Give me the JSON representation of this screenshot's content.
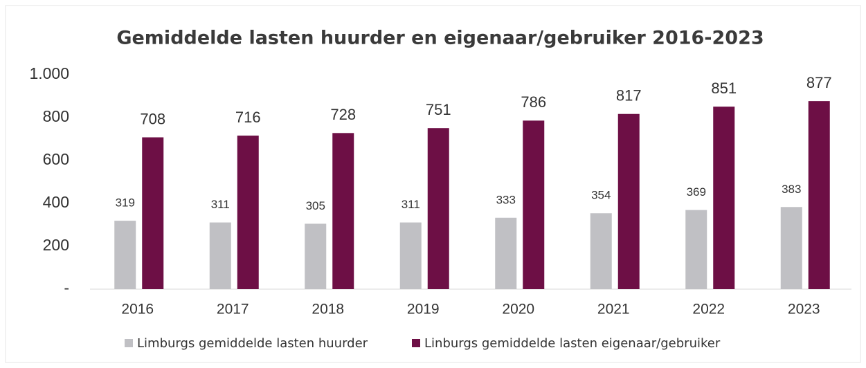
{
  "chart_data": {
    "type": "bar",
    "title": "Gemiddelde lasten huurder en eigenaar/gebruiker 2016-2023",
    "categories": [
      "2016",
      "2017",
      "2018",
      "2019",
      "2020",
      "2021",
      "2022",
      "2023"
    ],
    "series": [
      {
        "name": "Limburgs gemiddelde lasten huurder",
        "color": "#c0c0c4",
        "values": [
          319,
          311,
          305,
          311,
          333,
          354,
          369,
          383
        ]
      },
      {
        "name": "Linburgs gemiddelde lasten eigenaar/gebruiker",
        "color": "#6d0f45",
        "values": [
          708,
          716,
          728,
          751,
          786,
          817,
          851,
          877
        ]
      }
    ],
    "ylim": [
      0,
      1000
    ],
    "yticks": [
      {
        "value": 0,
        "label": "-"
      },
      200,
      400,
      600,
      800,
      {
        "value": 1000,
        "label": "1.000"
      }
    ],
    "grid": false,
    "legend": "bottom"
  }
}
